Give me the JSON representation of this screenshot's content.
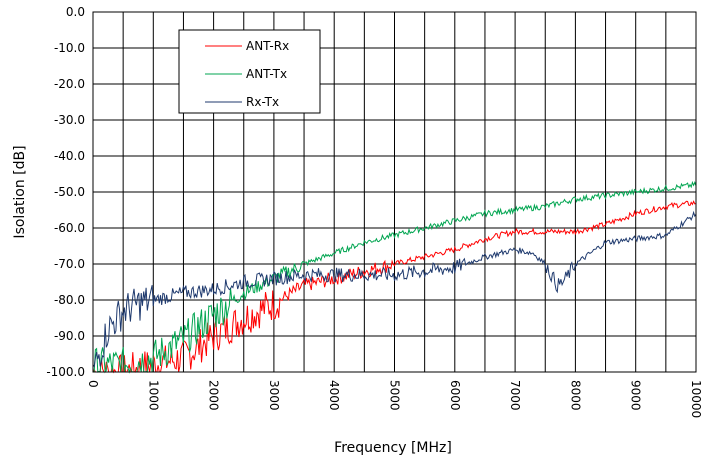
{
  "chart_data": {
    "type": "line",
    "xlabel": "Frequency [MHz]",
    "ylabel": "Isolation [dB]",
    "xlim": [
      0,
      10000
    ],
    "ylim": [
      -100,
      0
    ],
    "x_ticks": [
      "0",
      "1000",
      "2000",
      "3000",
      "4000",
      "5000",
      "6000",
      "7000",
      "8000",
      "9000",
      "10000"
    ],
    "y_ticks": [
      "0.0",
      "-10.0",
      "-20.0",
      "-30.0",
      "-40.0",
      "-50.0",
      "-60.0",
      "-70.0",
      "-80.0",
      "-90.0",
      "-100.0"
    ],
    "x_minor_step": 500,
    "grid": true,
    "legend_position": "top-left inside plot",
    "series": [
      {
        "name": "ANT-Rx",
        "color": "#ff0000",
        "x": [
          0,
          500,
          1000,
          1500,
          2000,
          2500,
          3000,
          3500,
          4000,
          4500,
          5000,
          5500,
          6000,
          6500,
          7000,
          7500,
          8000,
          8500,
          9000,
          9500,
          10000
        ],
        "y": [
          -100,
          -100,
          -98,
          -96,
          -90,
          -85,
          -81,
          -76,
          -74,
          -72,
          -70,
          -68,
          -66,
          -63,
          -61,
          -61,
          -61,
          -59,
          -56,
          -54,
          -53
        ]
      },
      {
        "name": "ANT-Tx",
        "color": "#00a550",
        "x": [
          0,
          500,
          1000,
          1500,
          2000,
          2500,
          3000,
          3500,
          4000,
          4500,
          5000,
          5500,
          6000,
          6500,
          7000,
          7500,
          8000,
          8500,
          9000,
          9500,
          10000
        ],
        "y": [
          -98,
          -98,
          -96,
          -91,
          -84,
          -78,
          -74,
          -70,
          -67,
          -64,
          -62,
          -60,
          -58,
          -56,
          -55,
          -54,
          -52,
          -51,
          -50,
          -49,
          -48
        ]
      },
      {
        "name": "Rx-Tx",
        "color": "#1f3a6e",
        "x": [
          0,
          250,
          500,
          750,
          1000,
          1500,
          2000,
          2500,
          3000,
          3500,
          4000,
          4500,
          5000,
          5500,
          6000,
          6500,
          7000,
          7300,
          7500,
          7700,
          7800,
          8000,
          8500,
          9000,
          9500,
          10000
        ],
        "y": [
          -100,
          -88,
          -83,
          -81,
          -80,
          -78,
          -77,
          -75,
          -74,
          -73,
          -73,
          -73,
          -73,
          -72,
          -71,
          -68,
          -66,
          -67,
          -70,
          -76,
          -75,
          -70,
          -64,
          -63,
          -62,
          -56
        ]
      }
    ]
  }
}
